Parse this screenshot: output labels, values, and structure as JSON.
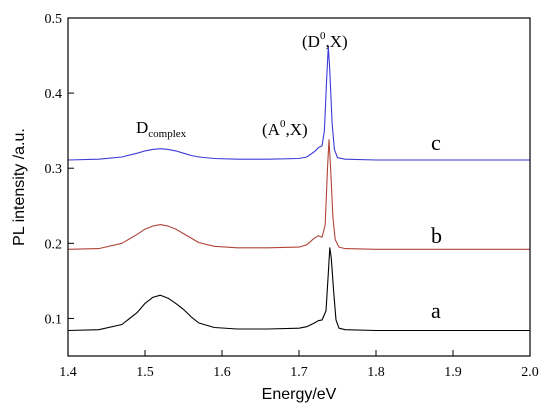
{
  "chart_data": {
    "type": "line",
    "title": "",
    "xlabel": "Energy/eV",
    "ylabel": "PL intensity /a.u.",
    "xlim": [
      1.4,
      2.0
    ],
    "ylim": [
      0.05,
      0.5
    ],
    "xticks": [
      1.4,
      1.5,
      1.6,
      1.7,
      1.8,
      1.9,
      2.0
    ],
    "xtick_labels": [
      "1.4",
      "1.5",
      "1.6",
      "1.7",
      "1.8",
      "1.9",
      "2.0"
    ],
    "yticks": [
      0.1,
      0.2,
      0.3,
      0.4,
      0.5
    ],
    "ytick_labels": [
      "0.1",
      "0.2",
      "0.3",
      "0.4",
      "0.5"
    ],
    "grid": false,
    "series": [
      {
        "label": "a",
        "color": "#000000",
        "x": [
          1.4,
          1.44,
          1.47,
          1.49,
          1.5,
          1.51,
          1.52,
          1.53,
          1.54,
          1.55,
          1.56,
          1.57,
          1.59,
          1.62,
          1.66,
          1.7,
          1.71,
          1.72,
          1.725,
          1.73,
          1.735,
          1.738,
          1.74,
          1.742,
          1.745,
          1.748,
          1.752,
          1.76,
          1.8,
          2.0
        ],
        "y": [
          0.084,
          0.085,
          0.092,
          0.108,
          0.12,
          0.128,
          0.131,
          0.127,
          0.12,
          0.112,
          0.102,
          0.094,
          0.088,
          0.086,
          0.086,
          0.087,
          0.089,
          0.094,
          0.097,
          0.098,
          0.11,
          0.16,
          0.194,
          0.18,
          0.135,
          0.098,
          0.087,
          0.085,
          0.084,
          0.084
        ]
      },
      {
        "label": "b",
        "color": "#b0453a",
        "x": [
          1.4,
          1.44,
          1.47,
          1.49,
          1.5,
          1.51,
          1.52,
          1.53,
          1.54,
          1.55,
          1.56,
          1.57,
          1.59,
          1.62,
          1.66,
          1.7,
          1.71,
          1.72,
          1.725,
          1.73,
          1.734,
          1.737,
          1.739,
          1.741,
          1.744,
          1.747,
          1.752,
          1.76,
          1.8,
          2.0
        ],
        "y": [
          0.192,
          0.193,
          0.2,
          0.212,
          0.219,
          0.223,
          0.225,
          0.223,
          0.219,
          0.213,
          0.207,
          0.201,
          0.196,
          0.194,
          0.194,
          0.195,
          0.198,
          0.207,
          0.21,
          0.208,
          0.225,
          0.3,
          0.338,
          0.3,
          0.235,
          0.205,
          0.195,
          0.193,
          0.192,
          0.192
        ]
      },
      {
        "label": "c",
        "color": "#3b3bd6",
        "x": [
          1.4,
          1.44,
          1.47,
          1.49,
          1.5,
          1.51,
          1.52,
          1.53,
          1.54,
          1.55,
          1.56,
          1.57,
          1.59,
          1.62,
          1.66,
          1.7,
          1.71,
          1.72,
          1.726,
          1.73,
          1.733,
          1.736,
          1.738,
          1.74,
          1.743,
          1.746,
          1.75,
          1.76,
          1.8,
          2.0
        ],
        "y": [
          0.311,
          0.312,
          0.315,
          0.32,
          0.323,
          0.325,
          0.326,
          0.325,
          0.323,
          0.32,
          0.317,
          0.315,
          0.313,
          0.312,
          0.312,
          0.313,
          0.315,
          0.322,
          0.328,
          0.33,
          0.35,
          0.42,
          0.462,
          0.43,
          0.36,
          0.325,
          0.314,
          0.312,
          0.311,
          0.311
        ]
      }
    ],
    "annotations": [
      {
        "base": "D",
        "sub": "complex"
      },
      {
        "open": "(A",
        "sup": "0",
        "close": ",X)"
      },
      {
        "open": "(D",
        "sup": "0",
        "close": ",X)"
      }
    ]
  }
}
